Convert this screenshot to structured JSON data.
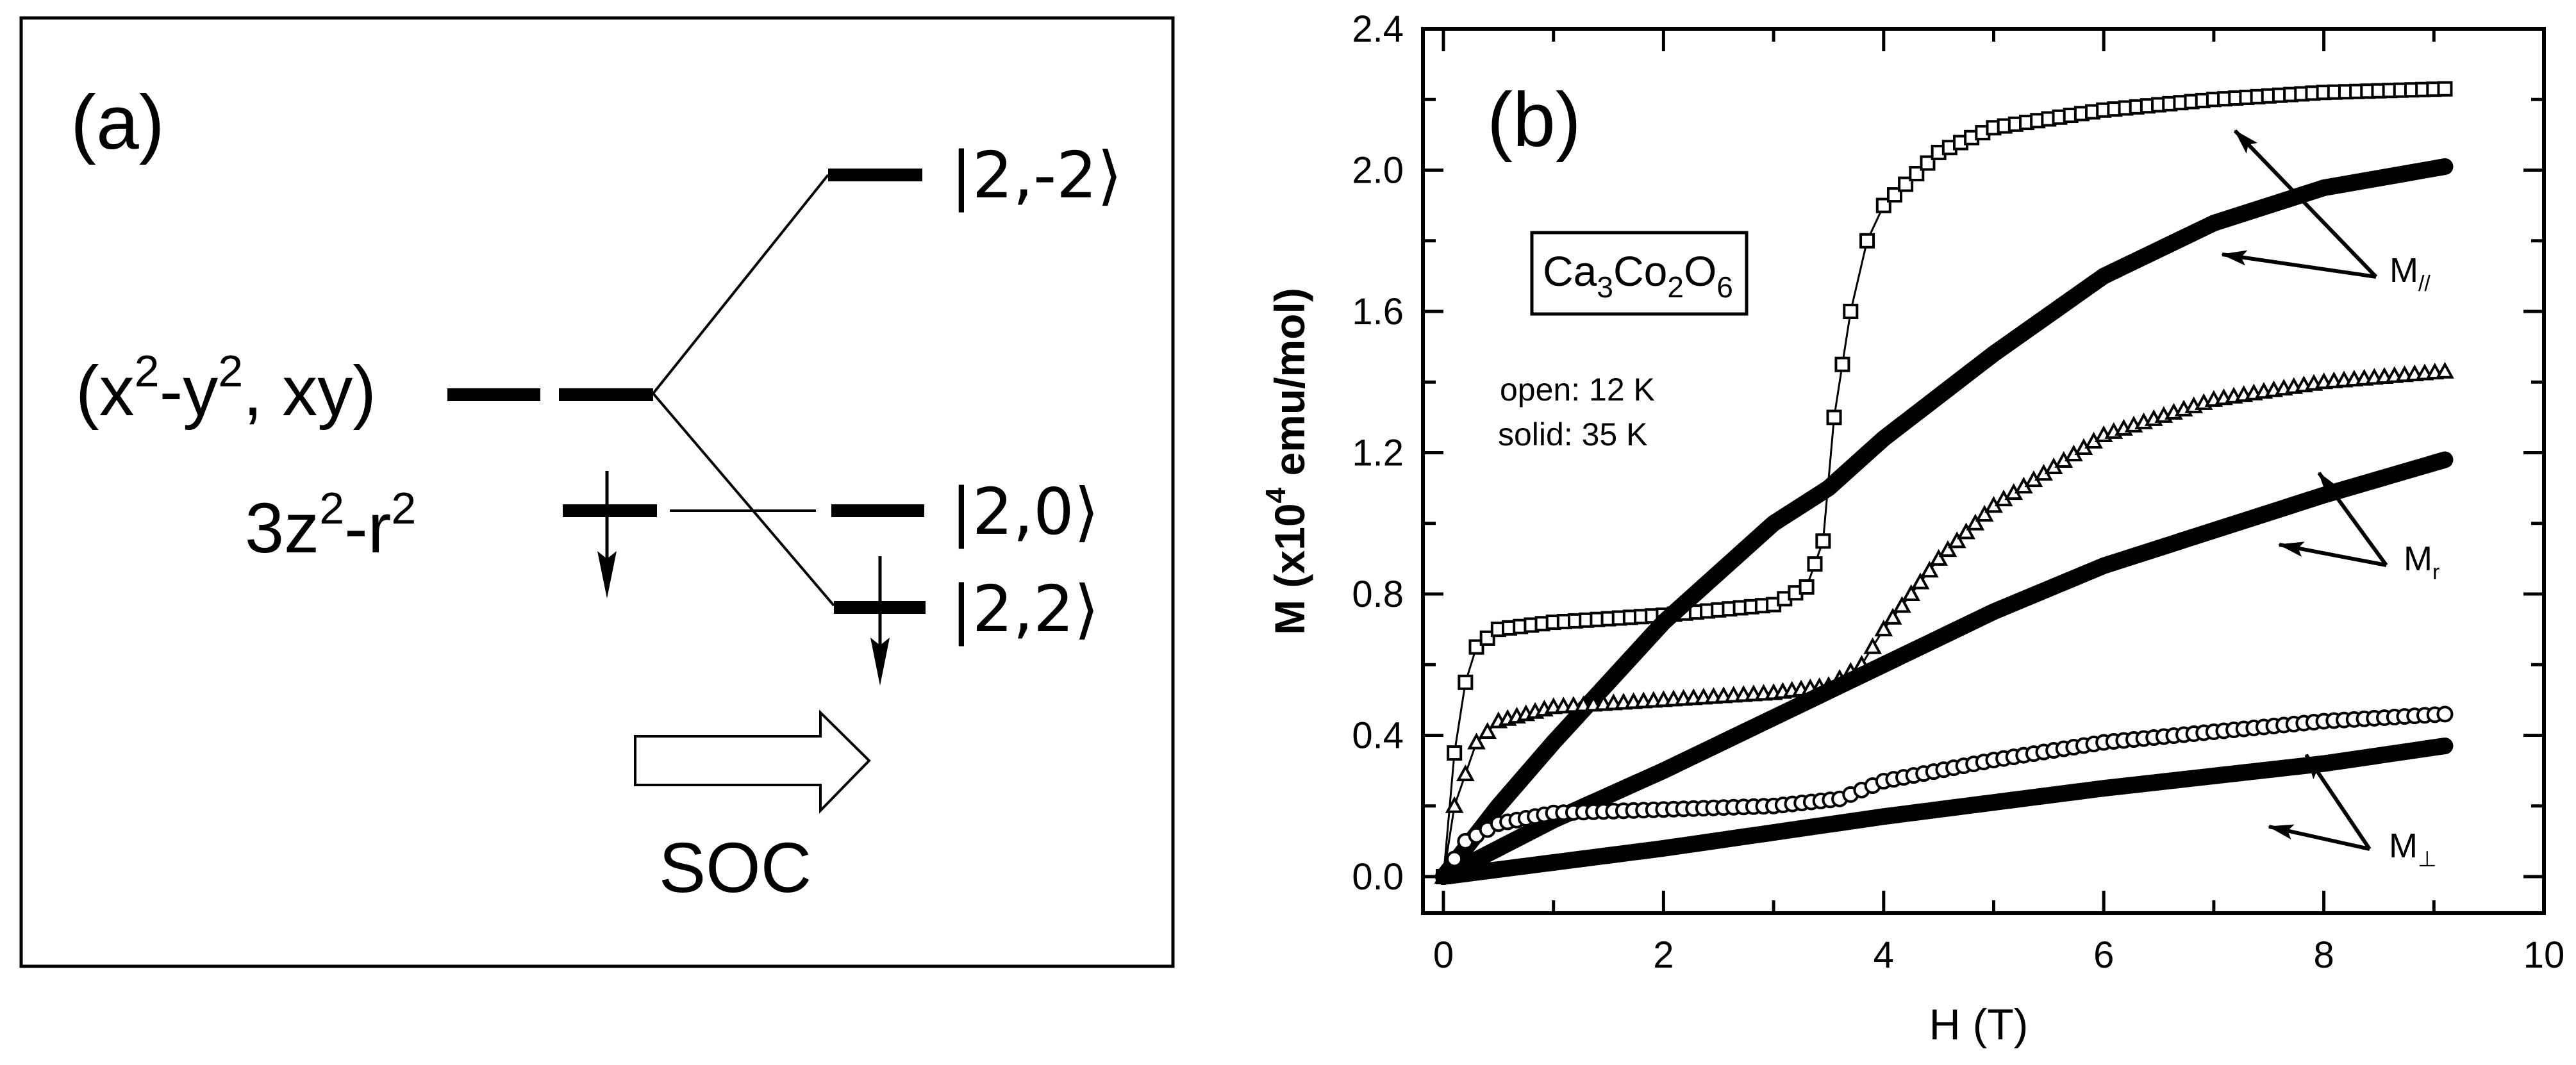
{
  "panel_a": {
    "label": "(a)",
    "orbital_eg_label": "(x",
    "orbital_eg_parts": [
      "(x",
      "2",
      "-y",
      "2",
      ", xy)"
    ],
    "orbital_z_parts": [
      "3z",
      "2",
      "-r",
      "2"
    ],
    "state_labels": [
      "|2,-2⟩",
      "|2,0⟩",
      "|2,2⟩"
    ],
    "soc_label": "SOC"
  },
  "panel_b": {
    "label": "(b)",
    "compound_parts": [
      "Ca",
      "3",
      "Co",
      "2",
      "O",
      "6"
    ],
    "legend_open": "open: 12 K",
    "legend_solid": "solid: 35 K",
    "annotation_labels": {
      "parallel": {
        "main": "M",
        "sub": "//"
      },
      "r": {
        "main": "M",
        "sub": "r"
      },
      "perp": {
        "main": "M",
        "sub": "⊥"
      }
    }
  },
  "chart_data": [
    {
      "type": "diagram",
      "title": "(a) Crystal-field levels and spin-orbit coupling splitting",
      "levels_before": [
        "(x²-y², xy)",
        "3z²-r²"
      ],
      "levels_after": [
        "|2,-2⟩",
        "|2,0⟩",
        "|2,2⟩"
      ],
      "occupied_spin_down": [
        "3z²-r²",
        "|2,2⟩"
      ],
      "arrow_label": "SOC"
    },
    {
      "type": "scatter",
      "title": "(b)",
      "annotation": "Ca3Co2O6",
      "legend": [
        "open: 12 K",
        "solid: 35 K"
      ],
      "xlabel": "H (T)",
      "ylabel": "M (x10^4 emu/mol)",
      "xlim": [
        -0.2,
        10
      ],
      "ylim": [
        -0.1,
        2.4
      ],
      "xticks": [
        0,
        2,
        4,
        6,
        8,
        10
      ],
      "yticks": [
        0.0,
        0.4,
        0.8,
        1.2,
        1.6,
        2.0,
        2.4
      ],
      "xtick_labels": [
        "0",
        "2",
        "4",
        "6",
        "8",
        "10"
      ],
      "ytick_labels": [
        "0.0",
        "0.4",
        "0.8",
        "1.2",
        "1.6",
        "2.0",
        "2.4"
      ],
      "grid": false,
      "series": [
        {
          "name": "M// 12 K",
          "marker": "open-square",
          "label": "M//",
          "x": [
            0,
            0.1,
            0.2,
            0.3,
            0.5,
            1.0,
            2.0,
            3.0,
            3.3,
            3.45,
            3.55,
            3.7,
            3.85,
            4.0,
            4.5,
            5.0,
            6.0,
            7.0,
            8.0,
            9.1
          ],
          "y": [
            0,
            0.35,
            0.55,
            0.65,
            0.7,
            0.72,
            0.74,
            0.77,
            0.82,
            0.95,
            1.3,
            1.6,
            1.8,
            1.9,
            2.05,
            2.12,
            2.17,
            2.2,
            2.22,
            2.23
          ]
        },
        {
          "name": "M// 35 K",
          "marker": "solid",
          "label": "M//",
          "x": [
            0,
            0.5,
            1.0,
            2.0,
            3.0,
            3.5,
            4.0,
            5.0,
            6.0,
            7.0,
            8.0,
            9.1
          ],
          "y": [
            0,
            0.2,
            0.38,
            0.72,
            1.0,
            1.1,
            1.24,
            1.48,
            1.7,
            1.85,
            1.95,
            2.01
          ]
        },
        {
          "name": "Mr 12 K",
          "marker": "open-triangle",
          "label": "Mr",
          "x": [
            0,
            0.1,
            0.3,
            0.5,
            1.0,
            2.0,
            3.0,
            3.5,
            3.8,
            4.0,
            4.5,
            5.0,
            6.0,
            7.0,
            8.0,
            9.1
          ],
          "y": [
            0,
            0.2,
            0.38,
            0.44,
            0.48,
            0.5,
            0.52,
            0.54,
            0.6,
            0.7,
            0.9,
            1.05,
            1.25,
            1.35,
            1.4,
            1.43
          ]
        },
        {
          "name": "Mr 35 K",
          "marker": "solid",
          "label": "Mr",
          "x": [
            0,
            1.0,
            2.0,
            3.0,
            3.6,
            4.0,
            5.0,
            6.0,
            7.0,
            8.0,
            9.1
          ],
          "y": [
            0,
            0.16,
            0.3,
            0.45,
            0.54,
            0.6,
            0.75,
            0.88,
            0.98,
            1.08,
            1.18
          ]
        },
        {
          "name": "M⊥ 12 K",
          "marker": "open-circle",
          "label": "M⊥",
          "x": [
            0,
            0.2,
            0.5,
            1.0,
            2.0,
            3.0,
            3.6,
            4.0,
            5.0,
            6.0,
            7.0,
            8.0,
            9.1
          ],
          "y": [
            0,
            0.1,
            0.15,
            0.18,
            0.19,
            0.2,
            0.22,
            0.27,
            0.33,
            0.38,
            0.41,
            0.44,
            0.46
          ]
        },
        {
          "name": "M⊥ 35 K",
          "marker": "solid",
          "label": "M⊥",
          "x": [
            0,
            2.0,
            4.0,
            6.0,
            8.0,
            9.1
          ],
          "y": [
            0,
            0.08,
            0.17,
            0.25,
            0.32,
            0.37
          ]
        }
      ]
    }
  ]
}
